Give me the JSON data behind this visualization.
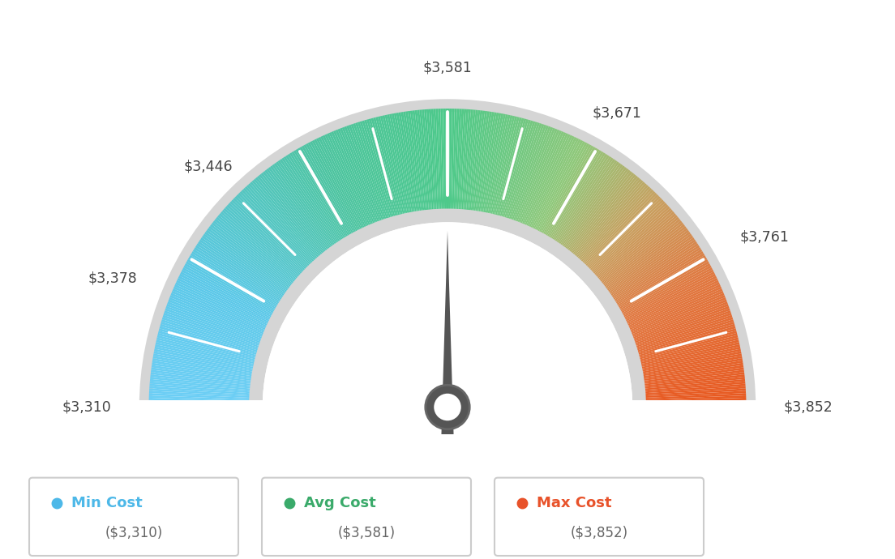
{
  "min_val": 3310,
  "max_val": 3852,
  "avg_val": 3581,
  "labels": {
    "min": "$3,310",
    "p1": "$3,378",
    "p2": "$3,446",
    "avg": "$3,581",
    "p3": "$3,671",
    "p4": "$3,761",
    "max": "$3,852"
  },
  "legend": [
    {
      "label": "Min Cost",
      "sublabel": "($3,310)",
      "color": "#4db8e8"
    },
    {
      "label": "Avg Cost",
      "sublabel": "($3,581)",
      "color": "#3aaa6a"
    },
    {
      "label": "Max Cost",
      "sublabel": "($3,852)",
      "color": "#e8522a"
    }
  ],
  "color_stops": [
    [
      0.0,
      "#6ecff6"
    ],
    [
      0.15,
      "#5bc8e8"
    ],
    [
      0.35,
      "#4dc4a0"
    ],
    [
      0.5,
      "#4dc98a"
    ],
    [
      0.65,
      "#8fc87a"
    ],
    [
      0.75,
      "#c8a060"
    ],
    [
      0.85,
      "#e07840"
    ],
    [
      1.0,
      "#e85820"
    ]
  ],
  "background_color": "#ffffff",
  "outer_r": 0.88,
  "inner_r": 0.58,
  "border_width": 0.05
}
